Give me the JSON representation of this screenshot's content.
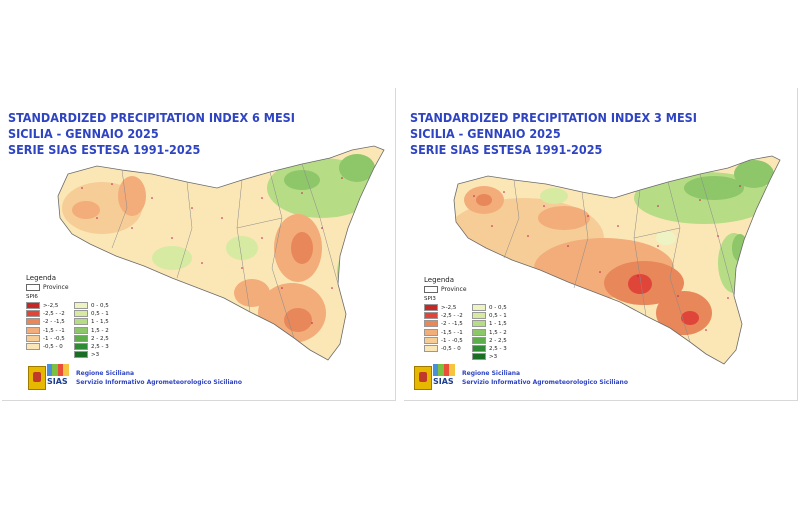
{
  "panels": [
    {
      "title_lines": [
        "STANDARDIZED PRECIPITATION INDEX 6 MESI",
        "SICILIA - GENNAIO 2025",
        "SERIE SIAS ESTESA 1991-2025"
      ],
      "legend": {
        "title": "Legenda",
        "province_label": "Province",
        "code": "SPI6",
        "items_left": [
          {
            "label": ">-2,5",
            "color": "#c62828"
          },
          {
            "label": "-2,5 - -2",
            "color": "#e0453a"
          },
          {
            "label": "-2 - -1,5",
            "color": "#e8875a"
          },
          {
            "label": "-1,5 - -1",
            "color": "#f2ad7a"
          },
          {
            "label": "-1 - -0,5",
            "color": "#f6cd96"
          },
          {
            "label": "-0,5 - 0",
            "color": "#fbe7b5"
          }
        ],
        "items_right": [
          {
            "label": "0 - 0,5",
            "color": "#eef3c4"
          },
          {
            "label": "0,5 - 1",
            "color": "#d6eaa2"
          },
          {
            "label": "1 - 1,5",
            "color": "#b6dc85"
          },
          {
            "label": "1,5 - 2",
            "color": "#8ec66a"
          },
          {
            "label": "2 - 2,5",
            "color": "#5fae4c"
          },
          {
            "label": "2,5 - 3",
            "color": "#2f8c34"
          },
          {
            "label": ">3",
            "color": "#1a6d25"
          }
        ]
      },
      "org_lines": [
        "Regione Siciliana",
        "Servizio Informativo Agrometeorologico Siciliano"
      ],
      "logo_text": "SIAS"
    },
    {
      "title_lines": [
        "STANDARDIZED PRECIPITATION INDEX 3 MESI",
        "SICILIA - GENNAIO 2025",
        "SERIE SIAS ESTESA 1991-2025"
      ],
      "legend": {
        "title": "Legenda",
        "province_label": "Province",
        "code": "SPI3",
        "items_left": [
          {
            "label": ">-2,5",
            "color": "#c62828"
          },
          {
            "label": "-2,5 - -2",
            "color": "#e0453a"
          },
          {
            "label": "-2 - -1,5",
            "color": "#e8875a"
          },
          {
            "label": "-1,5 - -1",
            "color": "#f2ad7a"
          },
          {
            "label": "-1 - -0,5",
            "color": "#f6cd96"
          },
          {
            "label": "-0,5 - 0",
            "color": "#fbe7b5"
          }
        ],
        "items_right": [
          {
            "label": "0 - 0,5",
            "color": "#eef3c4"
          },
          {
            "label": "0,5 - 1",
            "color": "#d6eaa2"
          },
          {
            "label": "1 - 1,5",
            "color": "#b6dc85"
          },
          {
            "label": "1,5 - 2",
            "color": "#8ec66a"
          },
          {
            "label": "2 - 2,5",
            "color": "#5fae4c"
          },
          {
            "label": "2,5 - 3",
            "color": "#2f8c34"
          },
          {
            "label": ">3",
            "color": "#1a6d25"
          }
        ]
      },
      "org_lines": [
        "Regione Siciliana",
        "Servizio Informativo Agrometeorologico Siciliano"
      ],
      "logo_text": "SIAS"
    }
  ]
}
